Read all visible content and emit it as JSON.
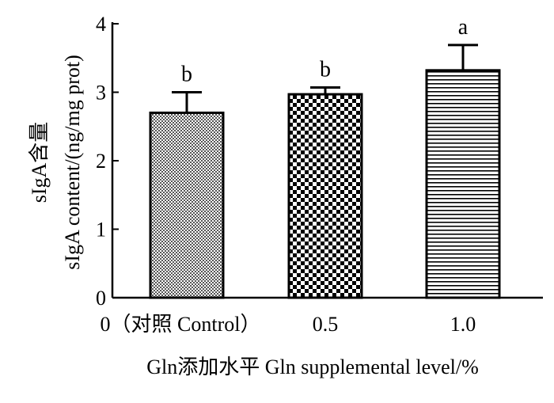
{
  "chart_data": {
    "type": "bar",
    "categories": [
      "0（对照 Control）",
      "0.5",
      "1.0"
    ],
    "values": [
      2.7,
      2.97,
      3.32
    ],
    "errors": [
      0.3,
      0.1,
      0.37
    ],
    "significance": [
      "b",
      "b",
      "a"
    ],
    "ylim": [
      0,
      4
    ],
    "yticks": [
      "0",
      "1",
      "2",
      "3",
      "4"
    ],
    "xlabel": "Gln添加水平 Gln supplemental level/%",
    "ylabel_line1": "sIgA含量",
    "ylabel_line2": "sIgA content/(ng/mg prot)",
    "patterns": [
      "fine-grid",
      "checker",
      "horizontal-lines"
    ],
    "grid": false,
    "legend": "none"
  }
}
